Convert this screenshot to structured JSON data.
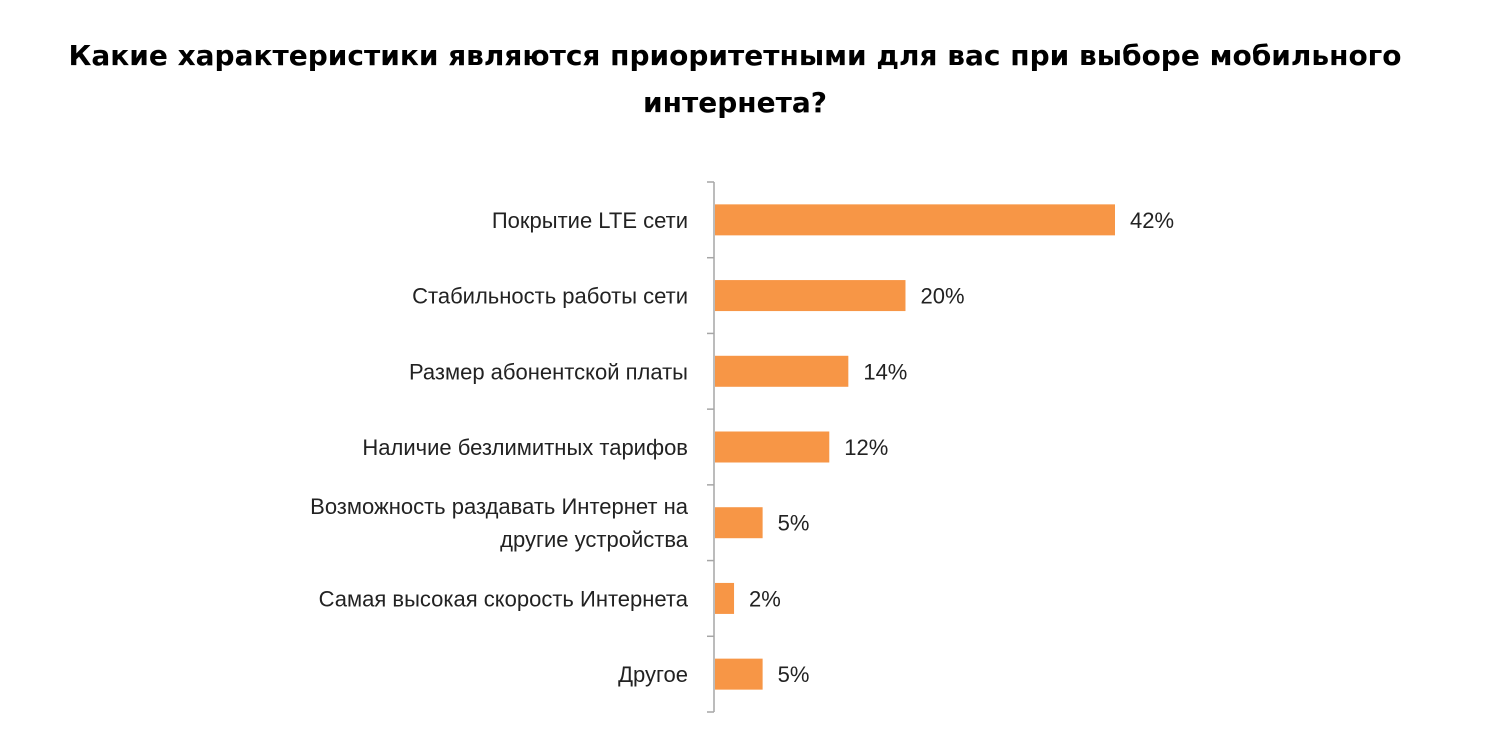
{
  "chart_data": {
    "type": "bar",
    "orientation": "horizontal",
    "title": "Какие характеристики являются приоритетными для вас при выборе мобильного интернета?",
    "categories": [
      "Покрытие LTE сети",
      "Стабильность работы сети",
      "Размер абонентской платы",
      "Наличие безлимитных тарифов",
      "Возможность раздавать Интернет на другие устройства",
      "Самая высокая скорость Интернета",
      "Другое"
    ],
    "category_lines": [
      [
        "Покрытие LTE сети"
      ],
      [
        "Стабильность работы сети"
      ],
      [
        "Размер абонентской платы"
      ],
      [
        "Наличие безлимитных тарифов"
      ],
      [
        "Возможность раздавать Интернет на",
        "другие устройства"
      ],
      [
        "Самая высокая скорость Интернета"
      ],
      [
        "Другое"
      ]
    ],
    "values": [
      42,
      20,
      14,
      12,
      5,
      2,
      5
    ],
    "value_labels": [
      "42%",
      "20%",
      "14%",
      "12%",
      "5%",
      "2%",
      "5%"
    ],
    "unit": "%",
    "xlim": [
      0,
      100
    ],
    "xaxis_visible": false,
    "grid": false,
    "legend": "none",
    "bar_color": "#F79646",
    "axis_color": "#A6A6A6",
    "text_color": "#222222"
  }
}
